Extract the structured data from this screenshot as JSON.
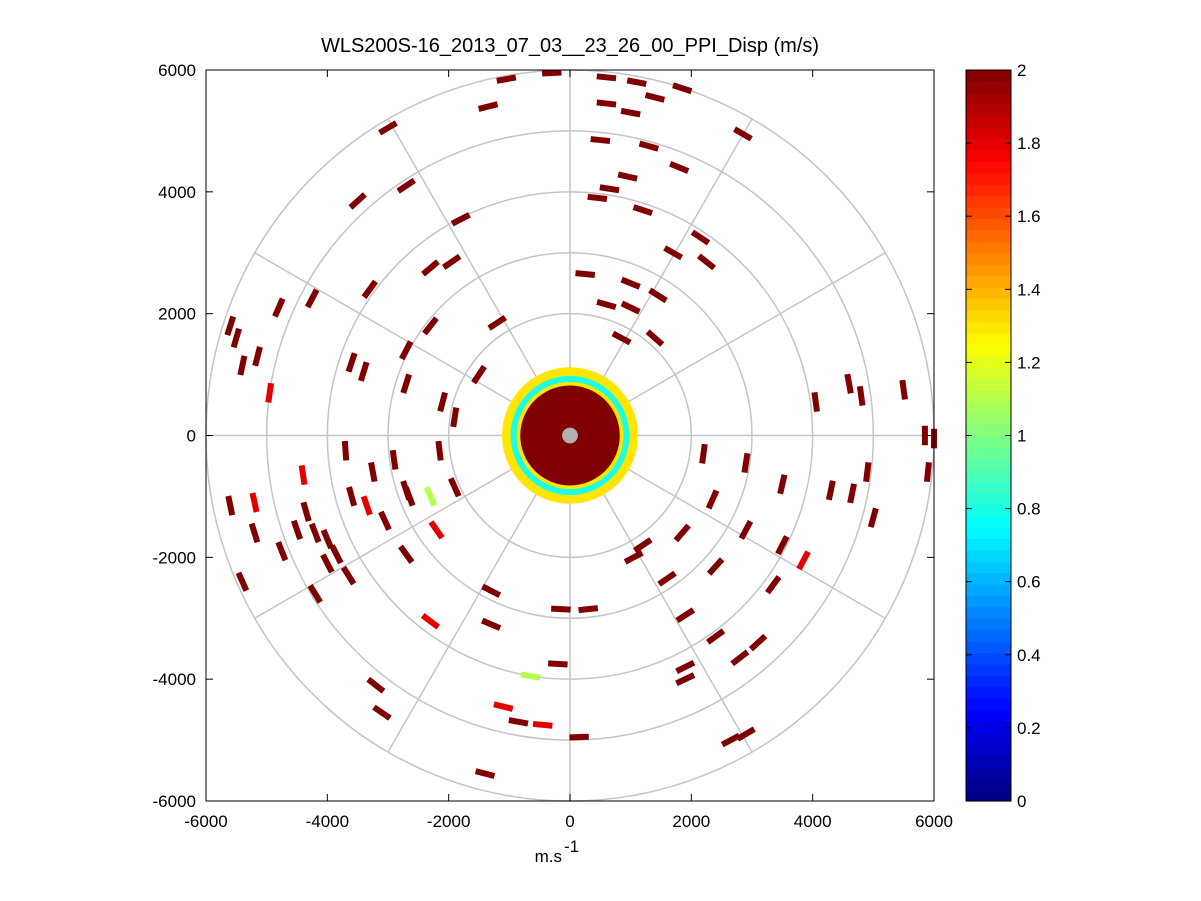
{
  "chart_data": {
    "type": "polar-ppi-scatter",
    "title": "WLS200S-16_2013_07_03__23_26_00_PPI_Disp (m/s)",
    "xlabel_base": "m.s",
    "xlabel_sup": "-1",
    "ylabel": "",
    "xlim": [
      -6000,
      6000
    ],
    "ylim": [
      -6000,
      6000
    ],
    "x_ticks": [
      -6000,
      -4000,
      -2000,
      0,
      2000,
      4000,
      6000
    ],
    "y_ticks": [
      -6000,
      -4000,
      -2000,
      0,
      2000,
      4000,
      6000
    ],
    "x_tick_labels": [
      "-6000",
      "-4000",
      "-2000",
      "0",
      "2000",
      "4000",
      "6000"
    ],
    "y_tick_labels": [
      "-6000",
      "-4000",
      "-2000",
      "0",
      "2000",
      "4000",
      "6000"
    ],
    "range_rings": [
      1000,
      2000,
      3000,
      4000,
      5000,
      6000
    ],
    "spoke_angles_deg": [
      0,
      30,
      60,
      90,
      120,
      150,
      180,
      210,
      240,
      270,
      300,
      330
    ],
    "colorbar": {
      "min": 0,
      "max": 2,
      "ticks": [
        0,
        0.2,
        0.4,
        0.6,
        0.8,
        1,
        1.2,
        1.4,
        1.6,
        1.8,
        2
      ],
      "tick_labels": [
        "0",
        "0.2",
        "0.4",
        "0.6",
        "0.8",
        "1",
        "1.2",
        "1.4",
        "1.6",
        "1.8",
        "2"
      ],
      "colormap": "jet"
    },
    "core": {
      "radius": 1100,
      "value": 2,
      "ring_high": {
        "r_inner": 880,
        "r_outer": 1120,
        "value": 1.3
      },
      "ring_mid": {
        "r_inner": 820,
        "r_outer": 930,
        "value": 0.8
      }
    },
    "segments": [
      {
        "x": -1050,
        "y": 5850,
        "v": 2
      },
      {
        "x": -300,
        "y": 5950,
        "v": 2
      },
      {
        "x": 600,
        "y": 5880,
        "v": 2
      },
      {
        "x": 1100,
        "y": 5800,
        "v": 2
      },
      {
        "x": 1850,
        "y": 5700,
        "v": 2
      },
      {
        "x": -1350,
        "y": 5400,
        "v": 2
      },
      {
        "x": 600,
        "y": 5450,
        "v": 2
      },
      {
        "x": 1000,
        "y": 5300,
        "v": 2
      },
      {
        "x": 1400,
        "y": 5550,
        "v": 2
      },
      {
        "x": -3000,
        "y": 5050,
        "v": 2
      },
      {
        "x": 2850,
        "y": 4950,
        "v": 2
      },
      {
        "x": 500,
        "y": 4850,
        "v": 2
      },
      {
        "x": 1300,
        "y": 4750,
        "v": 2
      },
      {
        "x": 1800,
        "y": 4400,
        "v": 2
      },
      {
        "x": 950,
        "y": 4250,
        "v": 2
      },
      {
        "x": 650,
        "y": 4050,
        "v": 2
      },
      {
        "x": -2700,
        "y": 4100,
        "v": 2
      },
      {
        "x": -3500,
        "y": 3850,
        "v": 2
      },
      {
        "x": 450,
        "y": 3900,
        "v": 2
      },
      {
        "x": 1200,
        "y": 3700,
        "v": 2
      },
      {
        "x": 2150,
        "y": 3250,
        "v": 2
      },
      {
        "x": -1800,
        "y": 3550,
        "v": 2
      },
      {
        "x": 1700,
        "y": 3000,
        "v": 2
      },
      {
        "x": 2250,
        "y": 2850,
        "v": 2
      },
      {
        "x": -2300,
        "y": 2750,
        "v": 2
      },
      {
        "x": -1950,
        "y": 2850,
        "v": 2
      },
      {
        "x": -3300,
        "y": 2400,
        "v": 2
      },
      {
        "x": 250,
        "y": 2650,
        "v": 2
      },
      {
        "x": 1000,
        "y": 2500,
        "v": 2
      },
      {
        "x": 1450,
        "y": 2300,
        "v": 2
      },
      {
        "x": -4250,
        "y": 2250,
        "v": 2
      },
      {
        "x": -4800,
        "y": 2100,
        "v": 2
      },
      {
        "x": -5600,
        "y": 1800,
        "v": 2
      },
      {
        "x": -5500,
        "y": 1600,
        "v": 2
      },
      {
        "x": -5150,
        "y": 1300,
        "v": 2
      },
      {
        "x": -5400,
        "y": 1150,
        "v": 2
      },
      {
        "x": 600,
        "y": 2150,
        "v": 2
      },
      {
        "x": 1000,
        "y": 2100,
        "v": 2
      },
      {
        "x": -1200,
        "y": 1850,
        "v": 2
      },
      {
        "x": -2300,
        "y": 1800,
        "v": 2
      },
      {
        "x": -3600,
        "y": 1200,
        "v": 2
      },
      {
        "x": -3400,
        "y": 1050,
        "v": 2
      },
      {
        "x": -2700,
        "y": 1400,
        "v": 2
      },
      {
        "x": -2700,
        "y": 850,
        "v": 2
      },
      {
        "x": -2100,
        "y": 550,
        "v": 2
      },
      {
        "x": -1500,
        "y": 1000,
        "v": 2
      },
      {
        "x": -1900,
        "y": 300,
        "v": 2
      },
      {
        "x": -4950,
        "y": 700,
        "v": 1.8
      },
      {
        "x": 4600,
        "y": 850,
        "v": 2
      },
      {
        "x": 4800,
        "y": 650,
        "v": 2
      },
      {
        "x": 5500,
        "y": 750,
        "v": 2
      },
      {
        "x": 4050,
        "y": 550,
        "v": 2
      },
      {
        "x": 5850,
        "y": 0,
        "v": 2
      },
      {
        "x": 6000,
        "y": -50,
        "v": 2
      },
      {
        "x": 5900,
        "y": -600,
        "v": 2
      },
      {
        "x": 4900,
        "y": -600,
        "v": 2
      },
      {
        "x": 4300,
        "y": -900,
        "v": 2
      },
      {
        "x": 4650,
        "y": -950,
        "v": 2
      },
      {
        "x": 3500,
        "y": -800,
        "v": 2
      },
      {
        "x": 5000,
        "y": -1350,
        "v": 2
      },
      {
        "x": 3500,
        "y": -1800,
        "v": 2
      },
      {
        "x": 3850,
        "y": -2050,
        "v": 1.8
      },
      {
        "x": 2900,
        "y": -1550,
        "v": 2
      },
      {
        "x": 3350,
        "y": -2450,
        "v": 2
      },
      {
        "x": 2400,
        "y": -2150,
        "v": 2
      },
      {
        "x": 1850,
        "y": -1600,
        "v": 2
      },
      {
        "x": 2400,
        "y": -3300,
        "v": 2
      },
      {
        "x": 3100,
        "y": -3400,
        "v": 2
      },
      {
        "x": 2800,
        "y": -3650,
        "v": 2
      },
      {
        "x": 1900,
        "y": -3800,
        "v": 2
      },
      {
        "x": 1900,
        "y": -4000,
        "v": 2
      },
      {
        "x": 2900,
        "y": -4900,
        "v": 2
      },
      {
        "x": 2650,
        "y": -5000,
        "v": 2
      },
      {
        "x": 1900,
        "y": -2950,
        "v": 2
      },
      {
        "x": -150,
        "y": -2850,
        "v": 2
      },
      {
        "x": 300,
        "y": -2850,
        "v": 2
      },
      {
        "x": -1300,
        "y": -3100,
        "v": 2
      },
      {
        "x": -1300,
        "y": -2550,
        "v": 2
      },
      {
        "x": -200,
        "y": -3750,
        "v": 2
      },
      {
        "x": -650,
        "y": -3950,
        "v": 1.1
      },
      {
        "x": -2300,
        "y": -3050,
        "v": 1.8
      },
      {
        "x": -3200,
        "y": -4100,
        "v": 2
      },
      {
        "x": -3100,
        "y": -4550,
        "v": 2
      },
      {
        "x": -1100,
        "y": -4450,
        "v": 1.8
      },
      {
        "x": -850,
        "y": -4700,
        "v": 2
      },
      {
        "x": -450,
        "y": -4750,
        "v": 1.8
      },
      {
        "x": 150,
        "y": -4950,
        "v": 2
      },
      {
        "x": -1400,
        "y": -5550,
        "v": 2
      },
      {
        "x": -4200,
        "y": -2600,
        "v": 2
      },
      {
        "x": -4000,
        "y": -2100,
        "v": 2
      },
      {
        "x": -4500,
        "y": -1550,
        "v": 2
      },
      {
        "x": -4200,
        "y": -1600,
        "v": 2
      },
      {
        "x": -4000,
        "y": -1700,
        "v": 2
      },
      {
        "x": -3850,
        "y": -1950,
        "v": 2
      },
      {
        "x": -3650,
        "y": -2300,
        "v": 2
      },
      {
        "x": -5400,
        "y": -2400,
        "v": 2
      },
      {
        "x": -5600,
        "y": -1150,
        "v": 2
      },
      {
        "x": -5200,
        "y": -1100,
        "v": 1.8
      },
      {
        "x": -5200,
        "y": -1600,
        "v": 2
      },
      {
        "x": -4750,
        "y": -1900,
        "v": 2
      },
      {
        "x": -4350,
        "y": -1250,
        "v": 2
      },
      {
        "x": -3600,
        "y": -1000,
        "v": 2
      },
      {
        "x": -3350,
        "y": -1150,
        "v": 1.8
      },
      {
        "x": -3050,
        "y": -1400,
        "v": 2
      },
      {
        "x": -2700,
        "y": -1950,
        "v": 2
      },
      {
        "x": -2700,
        "y": -900,
        "v": 2
      },
      {
        "x": -3250,
        "y": -600,
        "v": 2
      },
      {
        "x": -4400,
        "y": -650,
        "v": 1.8
      },
      {
        "x": -3700,
        "y": -250,
        "v": 2
      },
      {
        "x": -2300,
        "y": -1000,
        "v": 1.1
      },
      {
        "x": -2200,
        "y": -1550,
        "v": 1.8
      },
      {
        "x": -1900,
        "y": -850,
        "v": 2
      },
      {
        "x": -2650,
        "y": -1000,
        "v": 2
      },
      {
        "x": -2900,
        "y": -400,
        "v": 2
      },
      {
        "x": 2200,
        "y": -300,
        "v": 2
      },
      {
        "x": 2900,
        "y": -450,
        "v": 2
      },
      {
        "x": 2350,
        "y": -1050,
        "v": 2
      },
      {
        "x": 1200,
        "y": -1800,
        "v": 2
      },
      {
        "x": 1050,
        "y": -2000,
        "v": 2
      },
      {
        "x": 1600,
        "y": -2350,
        "v": 2
      },
      {
        "x": 1400,
        "y": 1600,
        "v": 2
      },
      {
        "x": 850,
        "y": 1600,
        "v": 2
      },
      {
        "x": -2150,
        "y": -250,
        "v": 2
      }
    ]
  }
}
